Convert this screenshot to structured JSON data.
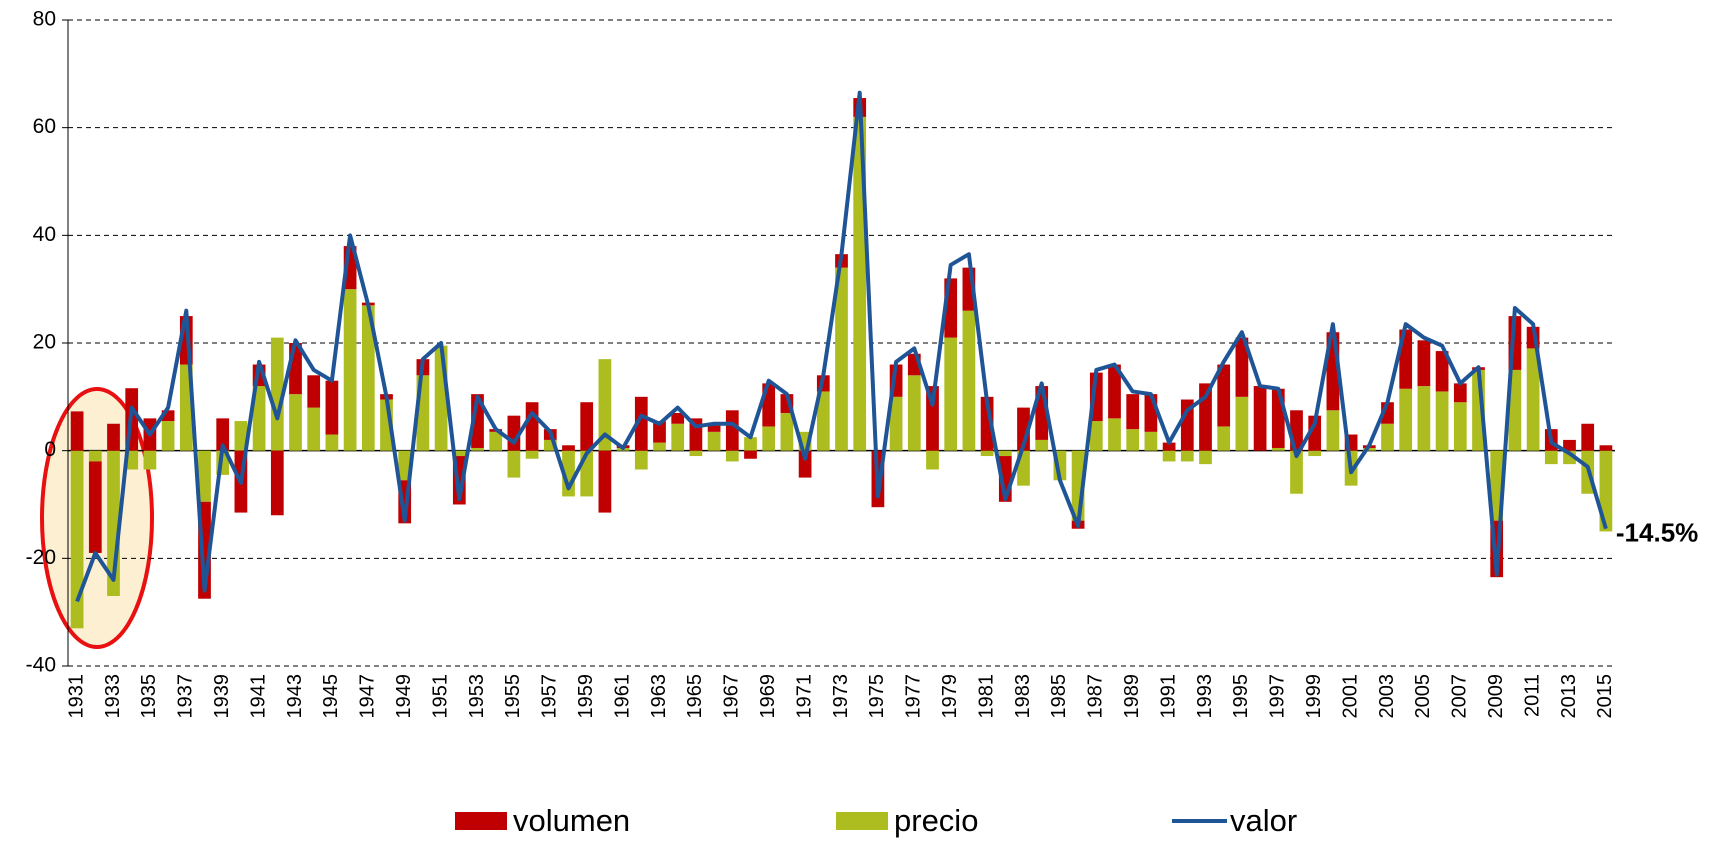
{
  "chart_data": {
    "type": "bar",
    "categories": [
      "1931",
      null,
      "1933",
      null,
      "1935",
      null,
      "1937",
      null,
      "1939",
      null,
      "1941",
      null,
      "1943",
      null,
      "1945",
      null,
      "1947",
      null,
      "1949",
      null,
      "1951",
      null,
      "1953",
      null,
      "1955",
      null,
      "1957",
      null,
      "1959",
      null,
      "1961",
      null,
      "1963",
      null,
      "1965",
      null,
      "1967",
      null,
      "1969",
      null,
      "1971",
      null,
      "1973",
      null,
      "1975",
      null,
      "1977",
      null,
      "1979",
      null,
      "1981",
      null,
      "1983",
      null,
      "1985",
      null,
      "1987",
      null,
      "1989",
      null,
      "1991",
      null,
      "1993",
      null,
      "1995",
      null,
      "1997",
      null,
      "1999",
      null,
      "2001",
      null,
      "2003",
      null,
      "2005",
      null,
      "2007",
      null,
      "2009",
      null,
      "2011",
      null,
      "2013",
      null,
      "2015"
    ],
    "series": [
      {
        "name": "volumen",
        "color": "#c00000",
        "values": [
          7.3,
          -17,
          5,
          11.6,
          6,
          2,
          9,
          -18,
          6,
          -11.5,
          4,
          -12,
          9.5,
          6,
          10,
          8,
          0.5,
          1,
          -8,
          3,
          0,
          -9,
          10,
          0.5,
          6.5,
          9,
          2,
          1,
          9,
          -11.5,
          0.5,
          10,
          4,
          2,
          6,
          1.5,
          7.5,
          -1.5,
          8,
          3.5,
          -5,
          3,
          2.5,
          3.5,
          -10.5,
          6,
          4,
          12,
          11,
          8,
          10,
          -8.5,
          8,
          10,
          0,
          -1.5,
          9,
          10,
          6.5,
          7,
          1.5,
          9.5,
          12.5,
          11.5,
          11,
          12,
          11,
          7.5,
          6.5,
          14.5,
          3,
          0.5,
          4,
          11,
          8.5,
          7.5,
          3.5,
          0.5,
          -10.5,
          10,
          4,
          4,
          2,
          5,
          1
        ]
      },
      {
        "name": "precio",
        "color": "#adbd1f",
        "values": [
          -33,
          -2,
          -27,
          -3.5,
          -3.5,
          5.5,
          16,
          -9.5,
          -4.5,
          5.5,
          12,
          21,
          10.5,
          8,
          3,
          30,
          27,
          9.5,
          -5.5,
          14,
          19.5,
          -1,
          0.5,
          3.5,
          -5,
          -1.5,
          2,
          -8.5,
          -8.5,
          17,
          0.5,
          -3.5,
          1.5,
          5,
          -1,
          3.5,
          -2,
          2.5,
          4.5,
          7,
          3.5,
          11,
          34,
          62,
          0,
          10,
          14,
          -3.5,
          21,
          26,
          -1,
          -1,
          -6.5,
          2,
          -5.5,
          -13,
          5.5,
          6,
          4,
          3.5,
          -2,
          -2,
          -2.5,
          4.5,
          10,
          0,
          0.5,
          -8,
          -1,
          7.5,
          -6.5,
          0.5,
          5,
          11.5,
          12,
          11,
          9,
          15,
          -13,
          15,
          19,
          -2.5,
          -2.5,
          -8,
          -15
        ]
      },
      {
        "name": "valor",
        "color": "#1f5596",
        "type": "line",
        "values": [
          -28,
          -19,
          -24,
          8,
          3,
          8,
          26,
          -26,
          1,
          -6,
          16.5,
          6,
          20.5,
          15,
          13,
          40,
          27,
          10,
          -13,
          17,
          20,
          -9,
          10,
          4,
          1.5,
          7,
          3.5,
          -7,
          -0.5,
          3,
          0.5,
          6.5,
          5,
          8,
          4.5,
          5,
          5,
          2.5,
          13,
          10.5,
          -1.5,
          14,
          36.5,
          66.5,
          -8.5,
          16.5,
          19,
          8.5,
          34.5,
          36.5,
          9,
          -9,
          1,
          12.5,
          -5.5,
          -14,
          15,
          16,
          11,
          10.5,
          1.5,
          7.5,
          10,
          16.5,
          22,
          12,
          11.5,
          -1,
          5,
          23.5,
          -4,
          1,
          9,
          23.5,
          21,
          19.5,
          12.5,
          15.5,
          -23,
          26.5,
          23.5,
          1.5,
          -0.5,
          -3,
          -14.5
        ],
        "value_labels": [
          null,
          null,
          null,
          null,
          null,
          null,
          null,
          null,
          null,
          null,
          null,
          null,
          null,
          null,
          null,
          null,
          null,
          null,
          null,
          null,
          null,
          null,
          null,
          null,
          null,
          null,
          null,
          null,
          null,
          null,
          null,
          null,
          null,
          null,
          null,
          null,
          null,
          null,
          null,
          null,
          null,
          null,
          null,
          null,
          null,
          null,
          null,
          null,
          null,
          null,
          null,
          null,
          null,
          null,
          null,
          null,
          null,
          null,
          null,
          null,
          null,
          null,
          null,
          null,
          null,
          null,
          null,
          null,
          null,
          null,
          null,
          null,
          null,
          null,
          null,
          null,
          null,
          null,
          null,
          null,
          null,
          null,
          null,
          null,
          "-14.5%"
        ]
      }
    ],
    "ylim": [
      -40,
      80
    ],
    "yticks": [
      -40,
      -20,
      0,
      20,
      40,
      60,
      80
    ],
    "grid": true,
    "legend": "bottom"
  }
}
